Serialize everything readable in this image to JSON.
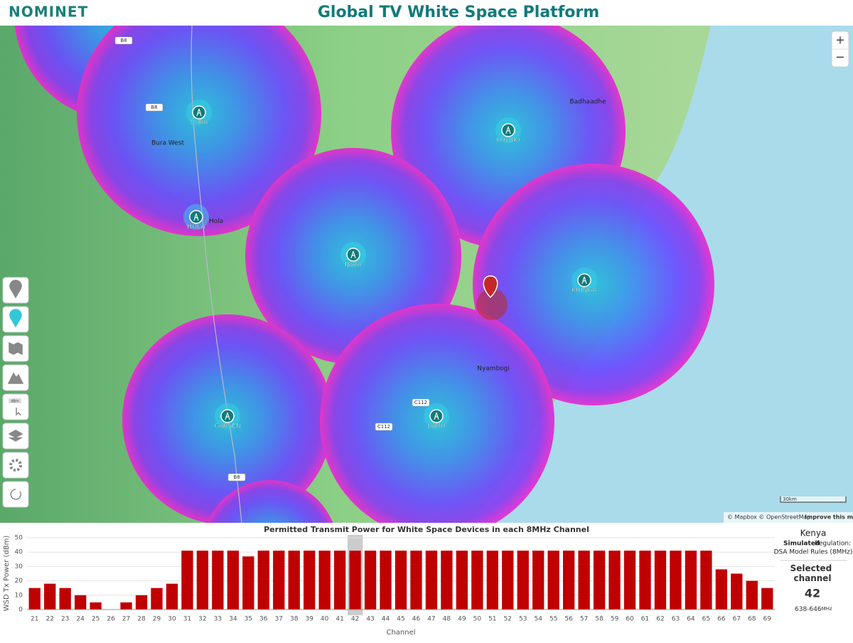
{
  "header": {
    "logo": "NOMINET",
    "title": "Global TV White Space Platform"
  },
  "map": {
    "transmitters": [
      "BURA",
      "KOLBIO",
      "HOLA",
      "IJARA",
      "KIUNGA",
      "GARSEN",
      "LAMU"
    ],
    "places": [
      "Bura West",
      "Hola",
      "Badhaadhe",
      "Nyambogi"
    ],
    "roads": [
      "B8",
      "B8",
      "B8",
      "C112",
      "C112"
    ],
    "zoom_in": "+",
    "zoom_out": "−",
    "scale": "30km",
    "attribution": "© Mapbox © OpenStreetMap",
    "improve": "Improve this map"
  },
  "toolbar": {
    "tool_label": "dBm"
  },
  "side_panel": {
    "country": "Kenya",
    "regulation_label": "Simulated",
    "regulation_suffix": "Regulation:",
    "regulation": "DSA Model Rules (8MHz)",
    "selected_title": "Selected channel",
    "selected_channel": "42",
    "frequency": "638-646",
    "frequency_unit": "MHz"
  },
  "chart_data": {
    "type": "bar",
    "title": "Permitted Transmit Power for White Space Devices in each 8MHz Channel",
    "x_label": "Channel",
    "y_label": "WSD Tx Power (dBm)",
    "categories": [
      "21",
      "22",
      "23",
      "24",
      "25",
      "26",
      "27",
      "28",
      "29",
      "30",
      "31",
      "32",
      "33",
      "34",
      "35",
      "36",
      "37",
      "38",
      "39",
      "40",
      "41",
      "42",
      "43",
      "44",
      "45",
      "46",
      "47",
      "48",
      "49",
      "50",
      "51",
      "52",
      "53",
      "54",
      "55",
      "56",
      "57",
      "58",
      "59",
      "60",
      "61",
      "62",
      "63",
      "64",
      "65",
      "66",
      "67",
      "68",
      "69"
    ],
    "values": [
      15,
      18,
      15,
      10,
      5,
      0,
      5,
      10,
      15,
      18,
      41,
      41,
      41,
      41,
      37,
      41,
      41,
      41,
      41,
      41,
      41,
      41,
      41,
      41,
      41,
      41,
      41,
      41,
      41,
      41,
      41,
      41,
      41,
      41,
      41,
      41,
      41,
      41,
      41,
      41,
      41,
      41,
      41,
      41,
      41,
      28,
      25,
      20,
      15
    ],
    "color": "#c00000",
    "ylim": [
      0,
      50
    ],
    "yticks": [
      0,
      10,
      20,
      30,
      40,
      50
    ],
    "grid": true
  }
}
